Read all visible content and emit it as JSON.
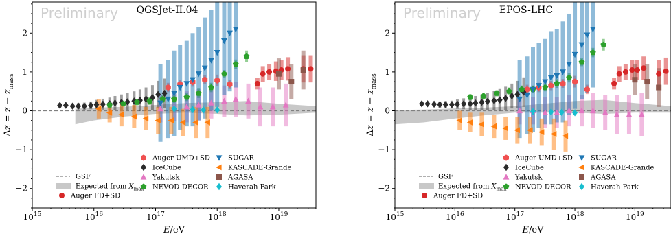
{
  "chart_data": [
    {
      "type": "scatter",
      "title": "QGSJet-II.04",
      "watermark": "Preliminary",
      "xlabel": "E/eV",
      "ylabel": "Δz = z − z_mass",
      "xscale": "log",
      "xlim": [
        1000000000000000.0,
        4e+19
      ],
      "ylim": [
        -2.5,
        2.8
      ],
      "xticks": [
        "10^15",
        "10^16",
        "10^17",
        "10^18",
        "10^19"
      ],
      "yticks": [
        "−2",
        "−1",
        "0",
        "1",
        "2"
      ],
      "reference_line": {
        "name": "GSF",
        "y": 0
      },
      "band": {
        "name": "Expected from X_max",
        "x": [
          5000000000000000.0,
          1e+16,
          3e+16,
          1e+17,
          3e+17,
          1e+18,
          3e+18,
          1e+19,
          4e+19
        ],
        "lo": [
          -0.35,
          -0.25,
          -0.15,
          -0.08,
          -0.05,
          -0.08,
          -0.12,
          -0.1,
          -0.05
        ],
        "hi": [
          0.05,
          0.08,
          0.1,
          0.15,
          0.2,
          0.22,
          0.25,
          0.18,
          0.12
        ]
      },
      "series": [
        {
          "name": "Auger FD+SD",
          "marker": "circle",
          "color": "#d62728",
          "x": [
            4.5e+18,
            5.5e+18,
            7e+18,
            9e+18,
            1.1e+19,
            1.4e+19,
            2.5e+19,
            3.3e+19
          ],
          "y": [
            0.7,
            0.95,
            1.0,
            1.02,
            1.05,
            1.08,
            1.08,
            1.08
          ],
          "err": [
            0.15,
            0.2,
            0.2,
            0.25,
            0.25,
            0.3,
            0.35,
            0.35
          ]
        },
        {
          "name": "Auger UMD+SD",
          "marker": "hexagon",
          "color": "#f05050",
          "x": [
            1.6e+17,
            2.5e+17,
            4e+17,
            6.3e+17,
            1e+18,
            1.6e+18
          ],
          "y": [
            0.6,
            0.68,
            0.74,
            0.8,
            0.78,
            0.68
          ],
          "err": [
            0.12,
            0.12,
            0.12,
            0.12,
            0.15,
            0.12
          ]
        },
        {
          "name": "IceCube",
          "marker": "diamond",
          "color": "#2b2b2b",
          "x": [
            2800000000000000.0,
            3500000000000000.0,
            4500000000000000.0,
            5600000000000000.0,
            7000000000000000.0,
            8900000000000000.0,
            1.1e+16,
            1.4e+16,
            1.8e+16,
            2.2e+16,
            2.8e+16,
            3.5e+16,
            4.5e+16,
            5.6e+16,
            7e+16,
            8.9e+16,
            1.1e+17,
            1.4e+17
          ],
          "y": [
            0.14,
            0.14,
            0.12,
            0.12,
            0.12,
            0.14,
            0.16,
            0.17,
            0.18,
            0.2,
            0.22,
            0.23,
            0.25,
            0.27,
            0.3,
            0.34,
            0.42,
            0.45
          ],
          "err": [
            0.06,
            0.06,
            0.07,
            0.08,
            0.09,
            0.1,
            0.12,
            0.14,
            0.16,
            0.18,
            0.2,
            0.22,
            0.25,
            0.28,
            0.3,
            0.32,
            0.35,
            0.38
          ]
        },
        {
          "name": "Yakutsk",
          "marker": "triangle-up",
          "color": "#e377c2",
          "x": [
            1.2e+17,
            2e+17,
            3.2e+17,
            5e+17,
            8e+17,
            1.3e+18,
            2e+18,
            3.2e+18,
            5e+18,
            8e+18,
            1.3e+19
          ],
          "y": [
            0.05,
            0.08,
            0.1,
            0.15,
            0.2,
            0.25,
            0.3,
            0.25,
            0.1,
            0.1,
            0.15
          ],
          "err": [
            0.35,
            0.35,
            0.4,
            0.4,
            0.4,
            0.4,
            0.45,
            0.45,
            0.5,
            0.5,
            0.55
          ]
        },
        {
          "name": "NEVOD-DECOR",
          "marker": "pentagon",
          "color": "#2ca02c",
          "x": [
            1.8e+16,
            3e+16,
            5e+16,
            8e+16,
            1.3e+17,
            2e+17,
            3.2e+17,
            5e+17,
            8e+17,
            1.3e+18,
            2e+18,
            3e+18
          ],
          "y": [
            0.15,
            0.18,
            0.22,
            0.25,
            0.3,
            0.3,
            0.35,
            0.45,
            0.6,
            0.95,
            1.2,
            1.4
          ],
          "err": [
            0.08,
            0.08,
            0.08,
            0.1,
            0.1,
            0.1,
            0.1,
            0.12,
            0.12,
            0.1,
            0.12,
            0.15
          ]
        },
        {
          "name": "SUGAR",
          "marker": "triangle-down",
          "color": "#1f77b4",
          "x": [
            1.2e+17,
            1.6e+17,
            2e+17,
            2.5e+17,
            3.2e+17,
            4e+17,
            5e+17,
            6.3e+17,
            8e+17,
            1e+18,
            1.3e+18,
            1.6e+18,
            2e+18
          ],
          "y": [
            0.2,
            0.3,
            0.45,
            0.6,
            0.7,
            0.8,
            0.95,
            1.1,
            1.3,
            1.5,
            1.8,
            2.0,
            2.1
          ],
          "err": [
            1.0,
            1.0,
            1.1,
            1.1,
            1.1,
            1.2,
            1.2,
            1.3,
            1.3,
            1.4,
            1.4,
            1.5,
            1.5
          ]
        },
        {
          "name": "KASCADE-Grande",
          "marker": "triangle-left",
          "color": "#ff7f0e",
          "x": [
            1.2e+16,
            1.8e+16,
            2.8e+16,
            4.5e+16,
            7e+16,
            1.1e+17,
            1.8e+17,
            2.8e+17,
            4.5e+17,
            7e+17
          ],
          "y": [
            0.05,
            -0.05,
            -0.1,
            -0.15,
            -0.2,
            -0.25,
            -0.25,
            -0.3,
            -0.3,
            -0.3
          ],
          "err": [
            0.25,
            0.25,
            0.3,
            0.3,
            0.3,
            0.35,
            0.35,
            0.35,
            0.4,
            0.4
          ]
        },
        {
          "name": "AGASA",
          "marker": "square",
          "color": "#8c564b",
          "x": [
            1e+19,
            1.6e+19,
            2.5e+19
          ],
          "y": [
            0.95,
            0.75,
            1.05
          ],
          "err": [
            0.4,
            0.45,
            0.5
          ]
        },
        {
          "name": "Haverah Park",
          "marker": "diamond",
          "color": "#17becf",
          "x": [
            2e+17,
            4e+17,
            6e+17,
            1e+18
          ],
          "y": [
            0.05,
            0.03,
            0.02,
            0.02
          ],
          "err": [
            0.05,
            0.05,
            0.05,
            0.05
          ]
        }
      ]
    },
    {
      "type": "scatter",
      "title": "EPOS-LHC",
      "watermark": "Preliminary",
      "xlabel": "E/eV",
      "ylabel": "Δz = z − z_mass",
      "xscale": "log",
      "xlim": [
        1000000000000000.0,
        4e+19
      ],
      "ylim": [
        -2.5,
        2.8
      ],
      "xticks": [
        "10^15",
        "10^16",
        "10^17",
        "10^18",
        "10^19"
      ],
      "yticks": [
        "−2",
        "−1",
        "0",
        "1",
        "2"
      ],
      "reference_line": {
        "name": "GSF",
        "y": 0
      },
      "band": {
        "name": "Expected from X_max",
        "x": [
          1000000000000000.0,
          3000000000000000.0,
          1e+16,
          3e+16,
          1e+17,
          3e+17,
          1e+18,
          3e+18,
          1e+19,
          4e+19
        ],
        "lo": [
          -0.35,
          -0.3,
          -0.2,
          -0.12,
          -0.05,
          -0.05,
          -0.05,
          -0.08,
          -0.05,
          -0.05
        ],
        "hi": [
          0.02,
          0.03,
          0.06,
          0.08,
          0.12,
          0.18,
          0.25,
          0.28,
          0.2,
          0.12
        ]
      },
      "series": [
        {
          "name": "Auger FD+SD",
          "marker": "circle",
          "color": "#d62728",
          "x": [
            4.5e+18,
            5.5e+18,
            7e+18,
            9e+18,
            1.1e+19,
            1.4e+19,
            2.5e+19,
            3.3e+19
          ],
          "y": [
            0.7,
            0.95,
            1.0,
            1.05,
            1.05,
            1.1,
            0.95,
            1.02
          ],
          "err": [
            0.15,
            0.2,
            0.2,
            0.25,
            0.25,
            0.3,
            0.35,
            0.35
          ]
        },
        {
          "name": "Auger UMD+SD",
          "marker": "hexagon",
          "color": "#f05050",
          "x": [
            1.6e+17,
            2.5e+17,
            4e+17,
            6.3e+17,
            1e+18,
            1.6e+18
          ],
          "y": [
            0.55,
            0.6,
            0.65,
            0.7,
            0.75,
            0.55
          ],
          "err": [
            0.12,
            0.12,
            0.12,
            0.12,
            0.15,
            0.12
          ]
        },
        {
          "name": "IceCube",
          "marker": "diamond",
          "color": "#2b2b2b",
          "x": [
            2800000000000000.0,
            3500000000000000.0,
            4500000000000000.0,
            5600000000000000.0,
            7000000000000000.0,
            8900000000000000.0,
            1.1e+16,
            1.4e+16,
            1.8e+16,
            2.2e+16,
            2.8e+16,
            3.5e+16,
            4.5e+16,
            5.6e+16,
            7e+16,
            8.9e+16,
            1.1e+17,
            1.4e+17
          ],
          "y": [
            0.18,
            0.18,
            0.17,
            0.16,
            0.16,
            0.16,
            0.17,
            0.18,
            0.18,
            0.2,
            0.22,
            0.24,
            0.26,
            0.28,
            0.32,
            0.38,
            0.42,
            0.48
          ],
          "err": [
            0.06,
            0.06,
            0.07,
            0.08,
            0.09,
            0.1,
            0.12,
            0.14,
            0.16,
            0.18,
            0.2,
            0.22,
            0.25,
            0.28,
            0.3,
            0.32,
            0.35,
            0.38
          ]
        },
        {
          "name": "Yakutsk",
          "marker": "triangle-up",
          "color": "#e377c2",
          "x": [
            1.2e+17,
            2e+17,
            3.2e+17,
            5e+17,
            8e+17,
            1.3e+18,
            2e+18,
            3.2e+18,
            5e+18,
            8e+18,
            1.3e+19
          ],
          "y": [
            0.0,
            0.0,
            -0.05,
            -0.05,
            0.0,
            0.0,
            0.0,
            -0.05,
            -0.1,
            -0.1,
            -0.1
          ],
          "err": [
            0.35,
            0.35,
            0.4,
            0.4,
            0.4,
            0.4,
            0.45,
            0.45,
            0.5,
            0.5,
            0.55
          ]
        },
        {
          "name": "NEVOD-DECOR",
          "marker": "pentagon",
          "color": "#2ca02c",
          "x": [
            1.8e+16,
            3e+16,
            5e+16,
            8e+16,
            1.3e+17,
            2e+17,
            3.2e+17,
            5e+17,
            8e+17,
            1.3e+18,
            2e+18,
            3e+18
          ],
          "y": [
            0.35,
            0.38,
            0.45,
            0.5,
            0.55,
            0.55,
            0.6,
            0.7,
            0.85,
            1.25,
            1.5,
            1.7
          ],
          "err": [
            0.08,
            0.08,
            0.08,
            0.1,
            0.1,
            0.1,
            0.1,
            0.12,
            0.12,
            0.1,
            0.12,
            0.15
          ]
        },
        {
          "name": "SUGAR",
          "marker": "triangle-down",
          "color": "#1f77b4",
          "x": [
            1.2e+17,
            1.6e+17,
            2e+17,
            2.5e+17,
            3.2e+17,
            4e+17,
            5e+17,
            6.3e+17,
            8e+17,
            1e+18,
            1.3e+18,
            1.6e+18,
            2e+18
          ],
          "y": [
            0.3,
            0.4,
            0.55,
            0.65,
            0.75,
            0.85,
            0.9,
            1.0,
            1.2,
            1.45,
            1.7,
            1.95,
            2.1
          ],
          "err": [
            1.0,
            1.0,
            1.1,
            1.1,
            1.1,
            1.2,
            1.2,
            1.3,
            1.3,
            1.4,
            1.4,
            1.5,
            1.5
          ]
        },
        {
          "name": "KASCADE-Grande",
          "marker": "triangle-left",
          "color": "#ff7f0e",
          "x": [
            1.2e+16,
            1.8e+16,
            2.8e+16,
            4.5e+16,
            7e+16,
            1.1e+17,
            1.8e+17,
            2.8e+17,
            4.5e+17,
            7e+17
          ],
          "y": [
            -0.25,
            -0.3,
            -0.35,
            -0.4,
            -0.45,
            -0.5,
            -0.5,
            -0.55,
            -0.6,
            -0.65
          ],
          "err": [
            0.25,
            0.25,
            0.3,
            0.3,
            0.3,
            0.35,
            0.35,
            0.35,
            0.4,
            0.4
          ]
        },
        {
          "name": "AGASA",
          "marker": "square",
          "color": "#8c564b",
          "x": [
            1e+19,
            1.6e+19,
            2.5e+19
          ],
          "y": [
            0.8,
            0.75,
            0.6
          ],
          "err": [
            0.4,
            0.45,
            0.5
          ]
        },
        {
          "name": "Haverah Park",
          "marker": "diamond",
          "color": "#17becf",
          "x": [
            2e+17,
            4e+17,
            6e+17,
            1e+18
          ],
          "y": [
            -0.02,
            -0.03,
            -0.04,
            -0.05
          ],
          "err": [
            0.05,
            0.05,
            0.05,
            0.05
          ]
        }
      ]
    }
  ],
  "legend": {
    "column_left": [
      {
        "label": "GSF",
        "kind": "dashed-line",
        "color": "#808080"
      },
      {
        "label": "Expected from X_max",
        "kind": "band",
        "color": "#c8c8c8"
      },
      {
        "label": "Auger FD+SD",
        "kind": "circle",
        "color": "#d62728"
      }
    ],
    "column_mid": [
      {
        "label": "Auger UMD+SD",
        "kind": "hexagon",
        "color": "#f05050"
      },
      {
        "label": "IceCube",
        "kind": "diamond",
        "color": "#2b2b2b"
      },
      {
        "label": "Yakutsk",
        "kind": "triangle-up",
        "color": "#e377c2"
      },
      {
        "label": "NEVOD-DECOR",
        "kind": "pentagon",
        "color": "#2ca02c"
      }
    ],
    "column_right": [
      {
        "label": "SUGAR",
        "kind": "triangle-down",
        "color": "#1f77b4"
      },
      {
        "label": "KASCADE-Grande",
        "kind": "triangle-left",
        "color": "#ff7f0e"
      },
      {
        "label": "AGASA",
        "kind": "square",
        "color": "#8c564b"
      },
      {
        "label": "Haverah Park",
        "kind": "diamond",
        "color": "#17becf"
      }
    ]
  }
}
